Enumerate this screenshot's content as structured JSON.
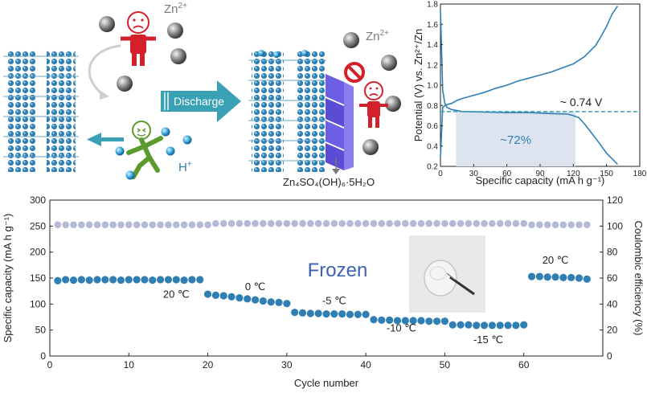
{
  "top_left": {
    "ion_zn": "Zn",
    "ion_zn_sup": "2+",
    "ion_h": "H",
    "ion_h_sup": "+",
    "arrow_label": "Discharge",
    "product_formula": "Zn₄SO₄(OH)₆·5H₂O",
    "ion_zn_right": "Zn",
    "ion_zn_right_sup": "2+"
  },
  "colors": {
    "main_blue": "#2f7fb5",
    "light_blue": "#86c6e6",
    "arrow_teal": "#3aa1b5",
    "purple": "#6d5fe3",
    "grey_dots": "#b5b9d6",
    "shade": "#dde3ef",
    "red_person": "#d4202a",
    "green_person": "#5c9a2e"
  },
  "chart_data": [
    {
      "type": "line",
      "title": "",
      "xlabel": "Specific capacity (mA h g⁻¹)",
      "ylabel": "Potential (V) vs. Zn²⁺/Zn",
      "xlim": [
        0,
        180
      ],
      "ylim": [
        0.2,
        1.8
      ],
      "xticks": [
        "0",
        "30",
        "60",
        "90",
        "120",
        "150",
        "180"
      ],
      "yticks": [
        "0.2",
        "0.4",
        "0.6",
        "0.8",
        "1.0",
        "1.2",
        "1.4",
        "1.6",
        "1.8"
      ],
      "annotations": {
        "plateau_label": "~ 0.74 V",
        "plateau_value": 0.74,
        "shade_label": "~72%",
        "shade_x_range": [
          14,
          122
        ]
      },
      "series": [
        {
          "role": "charge",
          "x": [
            0,
            2,
            4,
            6,
            10,
            15,
            20,
            30,
            40,
            50,
            60,
            70,
            80,
            90,
            100,
            110,
            120,
            130,
            140,
            145,
            150,
            155,
            160
          ],
          "y": [
            0.28,
            0.78,
            0.8,
            0.81,
            0.82,
            0.85,
            0.87,
            0.9,
            0.93,
            0.97,
            1.0,
            1.04,
            1.07,
            1.1,
            1.13,
            1.17,
            1.21,
            1.28,
            1.39,
            1.48,
            1.58,
            1.7,
            1.78
          ]
        },
        {
          "role": "discharge",
          "x": [
            0,
            2,
            4,
            6,
            10,
            20,
            40,
            60,
            80,
            100,
            115,
            120,
            125,
            130,
            140,
            150,
            160
          ],
          "y": [
            1.75,
            0.95,
            0.82,
            0.78,
            0.76,
            0.74,
            0.735,
            0.73,
            0.73,
            0.72,
            0.715,
            0.7,
            0.68,
            0.62,
            0.48,
            0.33,
            0.22
          ]
        }
      ]
    },
    {
      "type": "scatter",
      "title": "",
      "xlabel": "Cycle number",
      "ylabel": "Specific capacity (mA h g⁻¹)",
      "ylabel_right": "Coulombic efficiency (%)",
      "xlim": [
        0,
        70
      ],
      "ylim": [
        0,
        300
      ],
      "ylim_right": [
        0,
        120
      ],
      "xticks": [
        "0",
        "10",
        "20",
        "30",
        "40",
        "50",
        "60"
      ],
      "yticks": [
        "0",
        "50",
        "100",
        "150",
        "200",
        "250",
        "300"
      ],
      "yticks_right": [
        "0",
        "20",
        "40",
        "60",
        "80",
        "100",
        "120"
      ],
      "center_label": "Frozen",
      "temperature_labels": [
        {
          "text": "20 ℃",
          "x": 16,
          "y": 112
        },
        {
          "text": "0 ℃",
          "x": 26,
          "y": 127
        },
        {
          "text": "-5 ℃",
          "x": 36,
          "y": 100
        },
        {
          "text": "-10 ℃",
          "x": 44.5,
          "y": 47
        },
        {
          "text": "-15 ℃",
          "x": 55.5,
          "y": 25
        },
        {
          "text": "20 ℃",
          "x": 64,
          "y": 178
        }
      ],
      "series": [
        {
          "role": "capacity",
          "points": [
            [
              1,
              145
            ],
            [
              2,
              147
            ],
            [
              3,
              146
            ],
            [
              4,
              147
            ],
            [
              5,
              146
            ],
            [
              6,
              147
            ],
            [
              7,
              147
            ],
            [
              8,
              147
            ],
            [
              9,
              146
            ],
            [
              10,
              147
            ],
            [
              11,
              147
            ],
            [
              12,
              147
            ],
            [
              13,
              146
            ],
            [
              14,
              147
            ],
            [
              15,
              147
            ],
            [
              16,
              147
            ],
            [
              17,
              146
            ],
            [
              18,
              147
            ],
            [
              19,
              147
            ],
            [
              20,
              119
            ],
            [
              21,
              117
            ],
            [
              22,
              116
            ],
            [
              23,
              114
            ],
            [
              24,
              112
            ],
            [
              25,
              110
            ],
            [
              26,
              108
            ],
            [
              27,
              106
            ],
            [
              28,
              104
            ],
            [
              29,
              103
            ],
            [
              30,
              101
            ],
            [
              31,
              84
            ],
            [
              32,
              83
            ],
            [
              33,
              82
            ],
            [
              34,
              82
            ],
            [
              35,
              81
            ],
            [
              36,
              81
            ],
            [
              37,
              81
            ],
            [
              38,
              80
            ],
            [
              39,
              80
            ],
            [
              40,
              80
            ],
            [
              41,
              70
            ],
            [
              42,
              69
            ],
            [
              43,
              69
            ],
            [
              44,
              68
            ],
            [
              45,
              68
            ],
            [
              46,
              68
            ],
            [
              47,
              68
            ],
            [
              48,
              67
            ],
            [
              49,
              67
            ],
            [
              50,
              67
            ],
            [
              51,
              60
            ],
            [
              52,
              60
            ],
            [
              53,
              60
            ],
            [
              54,
              59
            ],
            [
              55,
              59
            ],
            [
              56,
              59
            ],
            [
              57,
              59
            ],
            [
              58,
              59
            ],
            [
              59,
              59
            ],
            [
              60,
              60
            ],
            [
              61,
              153
            ],
            [
              62,
              153
            ],
            [
              63,
              152
            ],
            [
              64,
              152
            ],
            [
              65,
              151
            ],
            [
              66,
              151
            ],
            [
              67,
              150
            ],
            [
              68,
              148
            ]
          ]
        },
        {
          "role": "coulombic_efficiency",
          "points": [
            [
              1,
              101
            ],
            [
              2,
              101
            ],
            [
              3,
              101
            ],
            [
              4,
              101
            ],
            [
              5,
              101
            ],
            [
              6,
              101
            ],
            [
              7,
              101
            ],
            [
              8,
              101
            ],
            [
              9,
              101
            ],
            [
              10,
              101
            ],
            [
              11,
              101
            ],
            [
              12,
              101
            ],
            [
              13,
              101
            ],
            [
              14,
              101
            ],
            [
              15,
              101
            ],
            [
              16,
              101
            ],
            [
              17,
              101
            ],
            [
              18,
              101
            ],
            [
              19,
              101
            ],
            [
              20,
              101
            ],
            [
              21,
              102
            ],
            [
              22,
              102
            ],
            [
              23,
              102
            ],
            [
              24,
              102
            ],
            [
              25,
              102
            ],
            [
              26,
              102
            ],
            [
              27,
              102
            ],
            [
              28,
              102
            ],
            [
              29,
              102
            ],
            [
              30,
              102
            ],
            [
              31,
              102
            ],
            [
              32,
              102
            ],
            [
              33,
              102
            ],
            [
              34,
              102
            ],
            [
              35,
              102
            ],
            [
              36,
              102
            ],
            [
              37,
              102
            ],
            [
              38,
              102
            ],
            [
              39,
              102
            ],
            [
              40,
              102
            ],
            [
              41,
              102
            ],
            [
              42,
              102
            ],
            [
              43,
              102
            ],
            [
              44,
              102
            ],
            [
              45,
              102
            ],
            [
              46,
              102
            ],
            [
              47,
              102
            ],
            [
              48,
              102
            ],
            [
              49,
              102
            ],
            [
              50,
              102
            ],
            [
              51,
              102
            ],
            [
              52,
              102
            ],
            [
              53,
              102
            ],
            [
              54,
              102
            ],
            [
              55,
              102
            ],
            [
              56,
              102
            ],
            [
              57,
              102
            ],
            [
              58,
              102
            ],
            [
              59,
              102
            ],
            [
              60,
              102
            ],
            [
              61,
              101
            ],
            [
              62,
              101
            ],
            [
              63,
              101
            ],
            [
              64,
              101
            ],
            [
              65,
              101
            ],
            [
              66,
              101
            ],
            [
              67,
              101
            ],
            [
              68,
              101
            ]
          ]
        }
      ]
    }
  ]
}
